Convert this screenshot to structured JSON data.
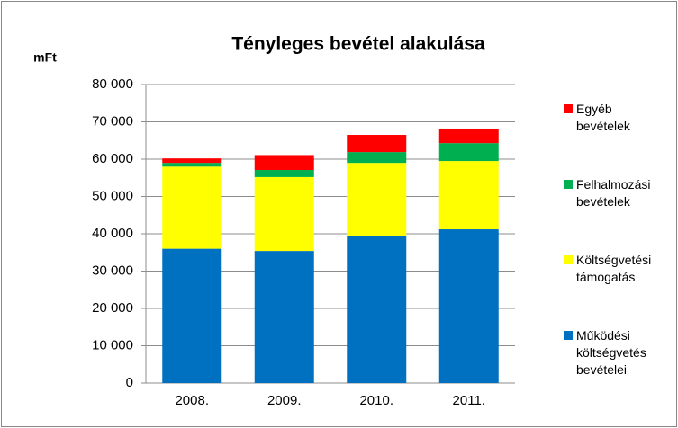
{
  "chart_data": {
    "type": "stacked_bar",
    "title": "Tényleges bevétel alakulása",
    "y_label": "mFt",
    "categories": [
      "2008.",
      "2009.",
      "2010.",
      "2011."
    ],
    "series": [
      {
        "name": "Működési költségvetés bevételei",
        "color": "#0070c0",
        "values": [
          36000,
          35400,
          39500,
          41200
        ]
      },
      {
        "name": "Költségvetési támogatás",
        "color": "#ffff00",
        "values": [
          22000,
          19800,
          19500,
          18300
        ]
      },
      {
        "name": "Felhalmozási bevételek",
        "color": "#00b050",
        "values": [
          1000,
          1900,
          2900,
          4800
        ]
      },
      {
        "name": "Egyéb bevételek",
        "color": "#ff0000",
        "values": [
          1200,
          4000,
          4600,
          3900
        ]
      }
    ],
    "ylim": [
      0,
      80000
    ],
    "yticks": [
      0,
      {
        "value": 10000,
        "label": "10 000"
      },
      {
        "value": 20000,
        "label": "20 000"
      },
      {
        "value": 30000,
        "label": "30 000"
      },
      {
        "value": 40000,
        "label": "40 000"
      },
      {
        "value": 50000,
        "label": "50 000"
      },
      {
        "value": 60000,
        "label": "60 000"
      },
      {
        "value": 70000,
        "label": "70 000"
      },
      {
        "value": 80000,
        "label": "80 000"
      }
    ],
    "grid": true,
    "legend": "right"
  }
}
